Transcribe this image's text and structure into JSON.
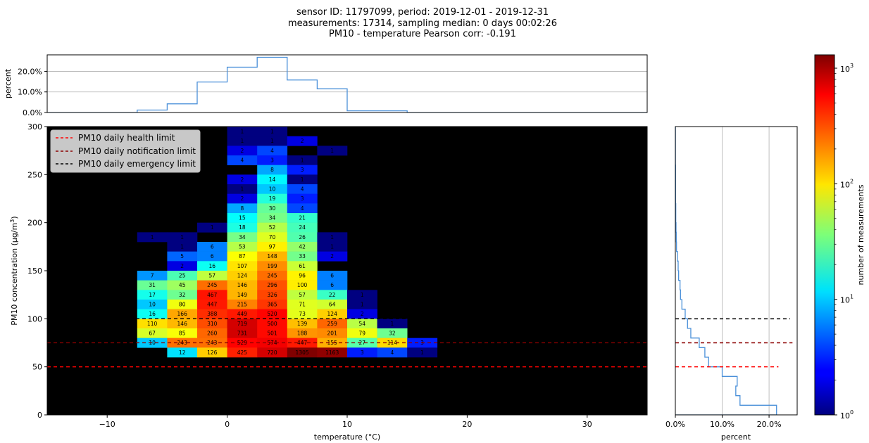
{
  "figure": {
    "title_lines": [
      "sensor ID: 11797099, period: 2019-12-01 - 2019-12-31",
      "measurements: 17314, sampling median: 0 days 00:02:26",
      "PM10 - temperature Pearson corr: -0.191"
    ]
  },
  "chart_data": [
    {
      "type": "heatmap",
      "xlabel": "temperature (°C)",
      "ylabel": "PM10 concentration (µg/m³)",
      "xlim": [
        -15,
        35
      ],
      "ylim": [
        0,
        300
      ],
      "xticks": [
        -10,
        0,
        10,
        20,
        30
      ],
      "xtick_labels": [
        "−10",
        "0",
        "10",
        "20",
        "30"
      ],
      "yticks": [
        0,
        50,
        100,
        150,
        200,
        250,
        300
      ],
      "xbin_width": 2.5,
      "ybin_width": 10,
      "background": "#000000",
      "colormap": "jet",
      "color_scale": "log",
      "vmin": 1,
      "vmax": 1305,
      "cells": [
        {
          "x": 0,
          "y": 290,
          "v": 1
        },
        {
          "x": 2.5,
          "y": 290,
          "v": 1
        },
        {
          "x": 0,
          "y": 280,
          "v": 1
        },
        {
          "x": 2.5,
          "y": 280,
          "v": 1
        },
        {
          "x": 5,
          "y": 280,
          "v": 2
        },
        {
          "x": 0,
          "y": 270,
          "v": 2
        },
        {
          "x": 2.5,
          "y": 270,
          "v": 4
        },
        {
          "x": 7.5,
          "y": 270,
          "v": 1
        },
        {
          "x": 0,
          "y": 260,
          "v": 4
        },
        {
          "x": 2.5,
          "y": 260,
          "v": 3
        },
        {
          "x": 5,
          "y": 260,
          "v": 1
        },
        {
          "x": 2.5,
          "y": 250,
          "v": 8
        },
        {
          "x": 5,
          "y": 250,
          "v": 3
        },
        {
          "x": 0,
          "y": 240,
          "v": 2
        },
        {
          "x": 2.5,
          "y": 240,
          "v": 14
        },
        {
          "x": 5,
          "y": 240,
          "v": 1
        },
        {
          "x": 0,
          "y": 230,
          "v": 1
        },
        {
          "x": 2.5,
          "y": 230,
          "v": 10
        },
        {
          "x": 5,
          "y": 230,
          "v": 4
        },
        {
          "x": 0,
          "y": 220,
          "v": 2
        },
        {
          "x": 2.5,
          "y": 220,
          "v": 19
        },
        {
          "x": 5,
          "y": 220,
          "v": 3
        },
        {
          "x": 0,
          "y": 210,
          "v": 8
        },
        {
          "x": 2.5,
          "y": 210,
          "v": 30
        },
        {
          "x": 5,
          "y": 210,
          "v": 4
        },
        {
          "x": 0,
          "y": 200,
          "v": 15
        },
        {
          "x": 2.5,
          "y": 200,
          "v": 34
        },
        {
          "x": 5,
          "y": 200,
          "v": 21
        },
        {
          "x": -2.5,
          "y": 190,
          "v": 1
        },
        {
          "x": 0,
          "y": 190,
          "v": 18
        },
        {
          "x": 2.5,
          "y": 190,
          "v": 52
        },
        {
          "x": 5,
          "y": 190,
          "v": 24
        },
        {
          "x": -7.5,
          "y": 180,
          "v": 1
        },
        {
          "x": -5,
          "y": 180,
          "v": 1
        },
        {
          "x": 0,
          "y": 180,
          "v": 34
        },
        {
          "x": 2.5,
          "y": 180,
          "v": 70
        },
        {
          "x": 5,
          "y": 180,
          "v": 26
        },
        {
          "x": 7.5,
          "y": 180,
          "v": 1
        },
        {
          "x": -5,
          "y": 170,
          "v": 1
        },
        {
          "x": -2.5,
          "y": 170,
          "v": 6
        },
        {
          "x": 0,
          "y": 170,
          "v": 53
        },
        {
          "x": 2.5,
          "y": 170,
          "v": 97
        },
        {
          "x": 5,
          "y": 170,
          "v": 42
        },
        {
          "x": 7.5,
          "y": 170,
          "v": 1
        },
        {
          "x": -5,
          "y": 160,
          "v": 5
        },
        {
          "x": -2.5,
          "y": 160,
          "v": 6
        },
        {
          "x": 0,
          "y": 160,
          "v": 87
        },
        {
          "x": 2.5,
          "y": 160,
          "v": 148
        },
        {
          "x": 5,
          "y": 160,
          "v": 33
        },
        {
          "x": 7.5,
          "y": 160,
          "v": 2
        },
        {
          "x": -5,
          "y": 150,
          "v": 2
        },
        {
          "x": -2.5,
          "y": 150,
          "v": 16
        },
        {
          "x": 0,
          "y": 150,
          "v": 107
        },
        {
          "x": 2.5,
          "y": 150,
          "v": 199
        },
        {
          "x": 5,
          "y": 150,
          "v": 61
        },
        {
          "x": -7.5,
          "y": 140,
          "v": 7
        },
        {
          "x": -5,
          "y": 140,
          "v": 25
        },
        {
          "x": -2.5,
          "y": 140,
          "v": 57
        },
        {
          "x": 0,
          "y": 140,
          "v": 124
        },
        {
          "x": 2.5,
          "y": 140,
          "v": 245
        },
        {
          "x": 5,
          "y": 140,
          "v": 96
        },
        {
          "x": 7.5,
          "y": 140,
          "v": 6
        },
        {
          "x": -7.5,
          "y": 130,
          "v": 31
        },
        {
          "x": -5,
          "y": 130,
          "v": 45
        },
        {
          "x": -2.5,
          "y": 130,
          "v": 245
        },
        {
          "x": 0,
          "y": 130,
          "v": 146
        },
        {
          "x": 2.5,
          "y": 130,
          "v": 296
        },
        {
          "x": 5,
          "y": 130,
          "v": 100
        },
        {
          "x": 7.5,
          "y": 130,
          "v": 6
        },
        {
          "x": -7.5,
          "y": 120,
          "v": 17
        },
        {
          "x": -5,
          "y": 120,
          "v": 32
        },
        {
          "x": -2.5,
          "y": 120,
          "v": 467
        },
        {
          "x": 0,
          "y": 120,
          "v": 149
        },
        {
          "x": 2.5,
          "y": 120,
          "v": 326
        },
        {
          "x": 5,
          "y": 120,
          "v": 57
        },
        {
          "x": 7.5,
          "y": 120,
          "v": 22
        },
        {
          "x": 10,
          "y": 120,
          "v": 1
        },
        {
          "x": -7.5,
          "y": 110,
          "v": 10
        },
        {
          "x": -5,
          "y": 110,
          "v": 80
        },
        {
          "x": -2.5,
          "y": 110,
          "v": 447
        },
        {
          "x": 0,
          "y": 110,
          "v": 215
        },
        {
          "x": 2.5,
          "y": 110,
          "v": 365
        },
        {
          "x": 5,
          "y": 110,
          "v": 71
        },
        {
          "x": 7.5,
          "y": 110,
          "v": 64
        },
        {
          "x": 10,
          "y": 110,
          "v": 1
        },
        {
          "x": -7.5,
          "y": 100,
          "v": 16
        },
        {
          "x": -5,
          "y": 100,
          "v": 166
        },
        {
          "x": -2.5,
          "y": 100,
          "v": 388
        },
        {
          "x": 0,
          "y": 100,
          "v": 449
        },
        {
          "x": 2.5,
          "y": 100,
          "v": 520
        },
        {
          "x": 5,
          "y": 100,
          "v": 73
        },
        {
          "x": 7.5,
          "y": 100,
          "v": 124
        },
        {
          "x": 10,
          "y": 100,
          "v": 2
        },
        {
          "x": -7.5,
          "y": 90,
          "v": 110
        },
        {
          "x": -5,
          "y": 90,
          "v": 146
        },
        {
          "x": -2.5,
          "y": 90,
          "v": 310
        },
        {
          "x": 0,
          "y": 90,
          "v": 719
        },
        {
          "x": 2.5,
          "y": 90,
          "v": 500
        },
        {
          "x": 5,
          "y": 90,
          "v": 139
        },
        {
          "x": 7.5,
          "y": 90,
          "v": 259
        },
        {
          "x": 10,
          "y": 90,
          "v": 54
        },
        {
          "x": 12.5,
          "y": 90,
          "v": 1
        },
        {
          "x": -7.5,
          "y": 80,
          "v": 67
        },
        {
          "x": -5,
          "y": 80,
          "v": 85
        },
        {
          "x": -2.5,
          "y": 80,
          "v": 260
        },
        {
          "x": 0,
          "y": 80,
          "v": 731
        },
        {
          "x": 2.5,
          "y": 80,
          "v": 501
        },
        {
          "x": 5,
          "y": 80,
          "v": 188
        },
        {
          "x": 7.5,
          "y": 80,
          "v": 201
        },
        {
          "x": 10,
          "y": 80,
          "v": 79
        },
        {
          "x": 12.5,
          "y": 80,
          "v": 32
        },
        {
          "x": -7.5,
          "y": 70,
          "v": 10
        },
        {
          "x": -5,
          "y": 70,
          "v": 243
        },
        {
          "x": -2.5,
          "y": 70,
          "v": 243
        },
        {
          "x": 0,
          "y": 70,
          "v": 529
        },
        {
          "x": 2.5,
          "y": 70,
          "v": 574
        },
        {
          "x": 5,
          "y": 70,
          "v": 447
        },
        {
          "x": 7.5,
          "y": 70,
          "v": 155
        },
        {
          "x": 10,
          "y": 70,
          "v": 27
        },
        {
          "x": 12.5,
          "y": 70,
          "v": 114
        },
        {
          "x": 15,
          "y": 70,
          "v": 3
        },
        {
          "x": -5,
          "y": 60,
          "v": 12
        },
        {
          "x": -2.5,
          "y": 60,
          "v": 126
        },
        {
          "x": 0,
          "y": 60,
          "v": 425
        },
        {
          "x": 2.5,
          "y": 60,
          "v": 720
        },
        {
          "x": 5,
          "y": 60,
          "v": 1305
        },
        {
          "x": 7.5,
          "y": 60,
          "v": 1163
        },
        {
          "x": 10,
          "y": 60,
          "v": 3
        },
        {
          "x": 12.5,
          "y": 60,
          "v": 4
        },
        {
          "x": 15,
          "y": 60,
          "v": 1
        }
      ],
      "hlines": [
        {
          "y": 50,
          "label": "PM10 daily health limit",
          "color": "#ff0000",
          "style": "dashed"
        },
        {
          "y": 75,
          "label": "PM10 daily notification limit",
          "color": "#8b0000",
          "style": "dashed"
        },
        {
          "y": 100,
          "label": "PM10 daily emergency limit",
          "color": "#000000",
          "style": "dashed"
        }
      ],
      "hline_xrange_main": [
        -15,
        35
      ],
      "hline_data_xrange": [
        -7.5,
        10
      ],
      "legend": {
        "position": "top-left"
      }
    },
    {
      "type": "line",
      "name": "temperature distribution",
      "ylabel": "percent",
      "xlim": [
        -15,
        35
      ],
      "ylim": [
        0,
        28
      ],
      "yticks": [
        0,
        10,
        20
      ],
      "ytick_labels": [
        "0.0%",
        "10.0%",
        "20.0%"
      ],
      "grid": "horizontal",
      "step_edges": [
        -7.5,
        -5,
        -2.5,
        0,
        2.5,
        5,
        7.5,
        10,
        12.5,
        15
      ],
      "step_values": [
        1.2,
        4.2,
        14.8,
        22.0,
        26.8,
        15.8,
        11.5,
        0.8,
        0.8
      ],
      "color": "#4a90d9"
    },
    {
      "type": "line",
      "name": "PM10 distribution",
      "xlabel": "percent",
      "xlim": [
        0,
        26
      ],
      "ylim": [
        0,
        300
      ],
      "xticks": [
        0,
        10,
        20
      ],
      "xtick_labels": [
        "0.0%",
        "10.0%",
        "20.0%"
      ],
      "grid": "vertical",
      "step_edges": [
        0,
        10,
        20,
        30,
        40,
        50,
        60,
        70,
        80,
        90,
        100,
        110,
        120,
        130,
        140,
        150,
        160,
        170,
        180,
        190,
        200,
        210,
        220,
        230,
        240,
        250,
        260,
        270,
        280,
        290,
        300
      ],
      "step_values": [
        21.6,
        13.8,
        12.9,
        13.2,
        10.0,
        7.1,
        6.3,
        5.1,
        3.3,
        2.6,
        2.1,
        1.4,
        1.1,
        1.0,
        0.7,
        0.6,
        0.45,
        0.25,
        0.2,
        0.15,
        0.1,
        0.1,
        0.05,
        0.05,
        0.05,
        0.05,
        0.02,
        0.02,
        0.02,
        0.02
      ],
      "color": "#4a90d9",
      "hlines_xmax": [
        22,
        25,
        24.5
      ]
    }
  ],
  "colorbar": {
    "label": "number of measurements",
    "scale": "log",
    "ticks": [
      {
        "value": 1,
        "base": "10",
        "exp": "0"
      },
      {
        "value": 10,
        "base": "10",
        "exp": "1"
      },
      {
        "value": 100,
        "base": "10",
        "exp": "2"
      },
      {
        "value": 1000,
        "base": "10",
        "exp": "3"
      }
    ]
  }
}
